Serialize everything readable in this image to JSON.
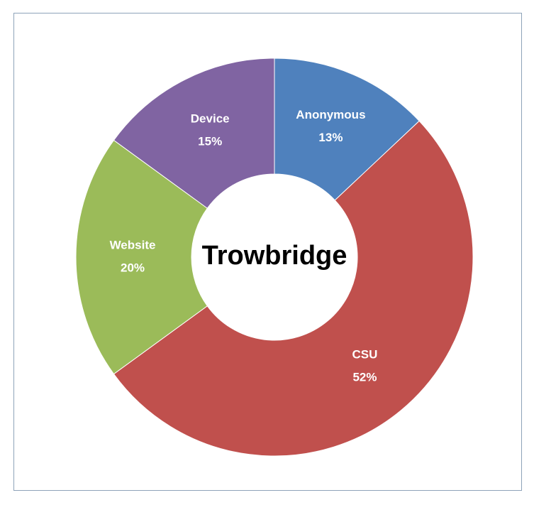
{
  "chart_data": {
    "type": "pie",
    "title": "Trowbridge",
    "categories": [
      "Anonymous",
      "CSU",
      "Website",
      "Device"
    ],
    "values": [
      13,
      52,
      20,
      15
    ],
    "value_labels": [
      "13%",
      "52%",
      "20%",
      "15%"
    ],
    "colors": [
      "#4f81bd",
      "#c0504d",
      "#9bbb59",
      "#8064a2"
    ]
  }
}
